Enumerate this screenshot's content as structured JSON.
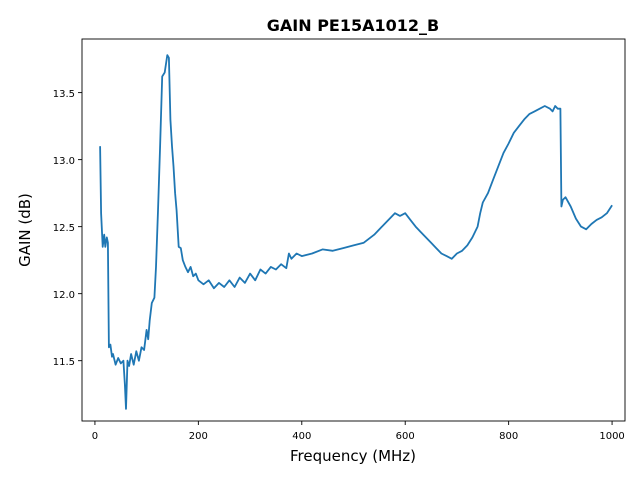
{
  "chart_data": {
    "type": "line",
    "title": "GAIN PE15A1012_B",
    "xlabel": "Frequency (MHz)",
    "ylabel": "GAIN (dB)",
    "xlim": [
      -25,
      1025
    ],
    "ylim": [
      11.05,
      13.9
    ],
    "xticks": [
      {
        "value": 0,
        "label": "0"
      },
      {
        "value": 200,
        "label": "200"
      },
      {
        "value": 400,
        "label": "400"
      },
      {
        "value": 600,
        "label": "600"
      },
      {
        "value": 800,
        "label": "800"
      },
      {
        "value": 1000,
        "label": "1000"
      }
    ],
    "yticks": [
      {
        "value": 11.5,
        "label": "11.5"
      },
      {
        "value": 12.0,
        "label": "12.0"
      },
      {
        "value": 12.5,
        "label": "12.5"
      },
      {
        "value": 13.0,
        "label": "13.0"
      },
      {
        "value": 13.5,
        "label": "13.5"
      }
    ],
    "grid": false,
    "line_color": "#1f77b4",
    "series": [
      {
        "x": [
          10,
          12,
          15,
          18,
          20,
          23,
          25,
          27,
          30,
          33,
          35,
          40,
          45,
          50,
          55,
          58,
          60,
          63,
          66,
          70,
          75,
          80,
          85,
          90,
          95,
          100,
          103,
          106,
          110,
          115,
          118,
          122,
          126,
          130,
          135,
          140,
          143,
          146,
          149,
          152,
          155,
          158,
          162,
          166,
          170,
          175,
          180,
          185,
          190,
          195,
          200,
          210,
          220,
          230,
          240,
          250,
          260,
          270,
          280,
          290,
          300,
          310,
          320,
          330,
          340,
          350,
          360,
          370,
          375,
          380,
          390,
          400,
          420,
          440,
          460,
          480,
          500,
          520,
          540,
          560,
          570,
          580,
          590,
          600,
          610,
          620,
          630,
          640,
          650,
          660,
          670,
          680,
          690,
          700,
          710,
          720,
          730,
          740,
          745,
          750,
          760,
          770,
          780,
          790,
          800,
          810,
          820,
          830,
          840,
          850,
          860,
          870,
          880,
          885,
          890,
          895,
          900,
          902,
          905,
          910,
          920,
          930,
          940,
          950,
          960,
          970,
          980,
          990,
          1000
        ],
        "y": [
          13.1,
          12.6,
          12.35,
          12.44,
          12.35,
          12.42,
          12.38,
          11.6,
          11.62,
          11.53,
          11.55,
          11.47,
          11.52,
          11.48,
          11.5,
          11.32,
          11.14,
          11.5,
          11.46,
          11.55,
          11.47,
          11.57,
          11.5,
          11.6,
          11.58,
          11.73,
          11.66,
          11.8,
          11.93,
          11.97,
          12.2,
          12.62,
          13.1,
          13.62,
          13.65,
          13.78,
          13.76,
          13.3,
          13.1,
          12.95,
          12.75,
          12.62,
          12.35,
          12.34,
          12.25,
          12.2,
          12.16,
          12.2,
          12.13,
          12.15,
          12.1,
          12.07,
          12.1,
          12.04,
          12.08,
          12.05,
          12.1,
          12.05,
          12.12,
          12.08,
          12.15,
          12.1,
          12.18,
          12.15,
          12.2,
          12.18,
          12.22,
          12.19,
          12.3,
          12.26,
          12.3,
          12.28,
          12.3,
          12.33,
          12.32,
          12.34,
          12.36,
          12.38,
          12.44,
          12.52,
          12.56,
          12.6,
          12.58,
          12.6,
          12.55,
          12.5,
          12.46,
          12.42,
          12.38,
          12.34,
          12.3,
          12.28,
          12.26,
          12.3,
          12.32,
          12.36,
          12.42,
          12.5,
          12.6,
          12.68,
          12.75,
          12.85,
          12.95,
          13.05,
          13.12,
          13.2,
          13.25,
          13.3,
          13.34,
          13.36,
          13.38,
          13.4,
          13.38,
          13.36,
          13.4,
          13.38,
          13.38,
          12.65,
          12.7,
          12.72,
          12.65,
          12.56,
          12.5,
          12.48,
          12.52,
          12.55,
          12.57,
          12.6,
          12.66
        ]
      }
    ]
  }
}
